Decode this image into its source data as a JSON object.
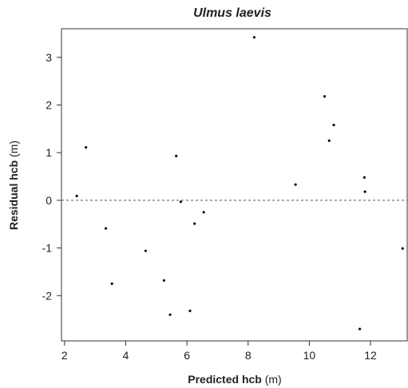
{
  "chart_data": {
    "type": "scatter",
    "title": "Ulmus laevis",
    "xlabel": {
      "bold": "Predicted hcb",
      "unit": " (m)"
    },
    "ylabel": {
      "bold": "Residual hcb",
      "unit": " (m)"
    },
    "xlim": [
      1.9,
      13.2
    ],
    "ylim": [
      -2.95,
      3.6
    ],
    "xticks": [
      2,
      4,
      6,
      8,
      10,
      12
    ],
    "yticks": [
      -2,
      -1,
      0,
      1,
      2,
      3
    ],
    "reference_line": {
      "y": 0,
      "style": "dashed"
    },
    "grid": false,
    "points": [
      {
        "x": 2.4,
        "y": 0.09
      },
      {
        "x": 2.7,
        "y": 1.11
      },
      {
        "x": 3.35,
        "y": -0.59
      },
      {
        "x": 3.55,
        "y": -1.75
      },
      {
        "x": 4.65,
        "y": -1.06
      },
      {
        "x": 5.25,
        "y": -1.68
      },
      {
        "x": 5.45,
        "y": -2.4
      },
      {
        "x": 5.65,
        "y": 0.93
      },
      {
        "x": 5.8,
        "y": -0.03
      },
      {
        "x": 6.1,
        "y": -2.32
      },
      {
        "x": 6.25,
        "y": -0.49
      },
      {
        "x": 6.55,
        "y": -0.25
      },
      {
        "x": 8.2,
        "y": 3.42
      },
      {
        "x": 9.55,
        "y": 0.33
      },
      {
        "x": 10.5,
        "y": 2.18
      },
      {
        "x": 10.65,
        "y": 1.25
      },
      {
        "x": 10.8,
        "y": 1.58
      },
      {
        "x": 11.65,
        "y": -2.7
      },
      {
        "x": 11.8,
        "y": 0.48
      },
      {
        "x": 11.82,
        "y": 0.18
      },
      {
        "x": 13.05,
        "y": -1.01
      }
    ]
  }
}
